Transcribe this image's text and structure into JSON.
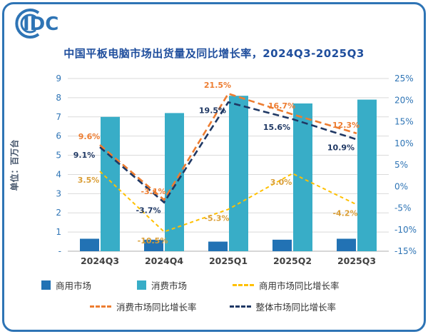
{
  "logo": {
    "text": "IDC"
  },
  "header": {
    "title": "中国平板电脑市场出货量及同比增长率，2024Q3-2025Q3"
  },
  "chart_data": {
    "type": "combo_bar_line",
    "title": "中国平板电脑市场出货量及同比增长率，2024Q3-2025Q3",
    "unit_label": "单位：百万台",
    "categories": [
      "2024Q3",
      "2024Q4",
      "2025Q1",
      "2025Q2",
      "2025Q3"
    ],
    "bar_series": [
      {
        "name": "商用市场",
        "color": "#2272B4",
        "values": [
          0.65,
          0.6,
          0.5,
          0.6,
          0.65
        ]
      },
      {
        "name": "消费市场",
        "color": "#38ADC7",
        "values": [
          7.0,
          7.2,
          8.1,
          7.7,
          7.9
        ]
      }
    ],
    "line_series": [
      {
        "name": "商用市场同比增长率",
        "color": "#FFC000",
        "label_color": "#DA9E36",
        "values": [
          3.5,
          -10.5,
          -5.3,
          3.0,
          -4.2
        ]
      },
      {
        "name": "消费市场同比增长率",
        "color": "#ED7D31",
        "label_color": "#ED7D31",
        "values": [
          9.6,
          -3.1,
          21.5,
          16.7,
          12.3
        ]
      },
      {
        "name": "整体市场同比增长率",
        "color": "#1F3864",
        "label_color": "#1F3864",
        "values": [
          9.1,
          -3.7,
          19.5,
          15.6,
          10.9
        ]
      }
    ],
    "axis_left": {
      "min": 0,
      "max": 9,
      "ticks": [
        "9",
        "8",
        "7",
        "6",
        "5",
        "4",
        "3",
        "2",
        "1",
        "-"
      ]
    },
    "axis_right": {
      "min": -15,
      "max": 25,
      "ticks": [
        "25%",
        "20%",
        "15%",
        "10%",
        "5%",
        "0%",
        "-5%",
        "-10%",
        "-15%"
      ]
    },
    "legend": [
      {
        "label": "商用市场",
        "marker": "square",
        "color": "#2272B4"
      },
      {
        "label": "消费市场",
        "marker": "square",
        "color": "#38ADC7"
      },
      {
        "label": "商用市场同比增长率",
        "marker": "dash",
        "color": "#FFC000"
      },
      {
        "label": "消费市场同比增长率",
        "marker": "dash",
        "color": "#ED7D31"
      },
      {
        "label": "整体市场同比增长率",
        "marker": "dash",
        "color": "#1F3864"
      }
    ],
    "colors": {
      "border": "#2E74B5",
      "title": "#1F4E9D",
      "axis": "#2E74B5",
      "grid": "#DADADA"
    }
  }
}
